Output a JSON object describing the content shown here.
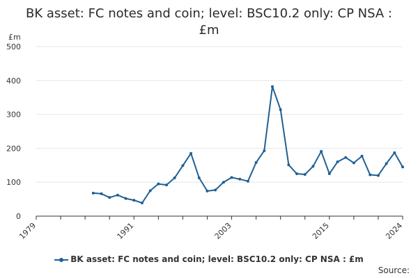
{
  "title": "BK asset: FC notes and coin; level: BSC10.2 only: CP NSA : £m",
  "source_label": "Source:",
  "colors": {
    "series": "#206095",
    "grid": "#e6e6e6",
    "axis": "#333333"
  },
  "chart_data": {
    "type": "line",
    "title": "BK asset: FC notes and coin; level: BSC10.2 only: CP NSA : £m",
    "ylabel": "£m",
    "xlabel": "",
    "ylim": [
      0,
      500
    ],
    "xlim": [
      1979,
      2024
    ],
    "yticks": [
      0,
      100,
      200,
      300,
      400,
      500
    ],
    "xticks": [
      1979,
      1991,
      2003,
      2015,
      2024
    ],
    "grid": true,
    "legend_position": "bottom",
    "series": [
      {
        "name": "BK asset: FC notes and coin; level: BSC10.2 only: CP NSA : £m",
        "x": [
          1986,
          1987,
          1988,
          1989,
          1990,
          1991,
          1992,
          1993,
          1994,
          1995,
          1996,
          1997,
          1998,
          1999,
          2000,
          2001,
          2002,
          2003,
          2004,
          2005,
          2006,
          2007,
          2008,
          2009,
          2010,
          2011,
          2012,
          2013,
          2014,
          2015,
          2016,
          2017,
          2018,
          2019,
          2020,
          2021,
          2022,
          2023,
          2024
        ],
        "y": [
          68,
          66,
          55,
          62,
          52,
          47,
          39,
          75,
          95,
          92,
          113,
          149,
          185,
          113,
          74,
          77,
          100,
          114,
          109,
          103,
          158,
          193,
          382,
          314,
          151,
          125,
          123,
          147,
          191,
          125,
          160,
          173,
          157,
          177,
          122,
          120,
          155,
          187,
          145
        ]
      }
    ]
  }
}
